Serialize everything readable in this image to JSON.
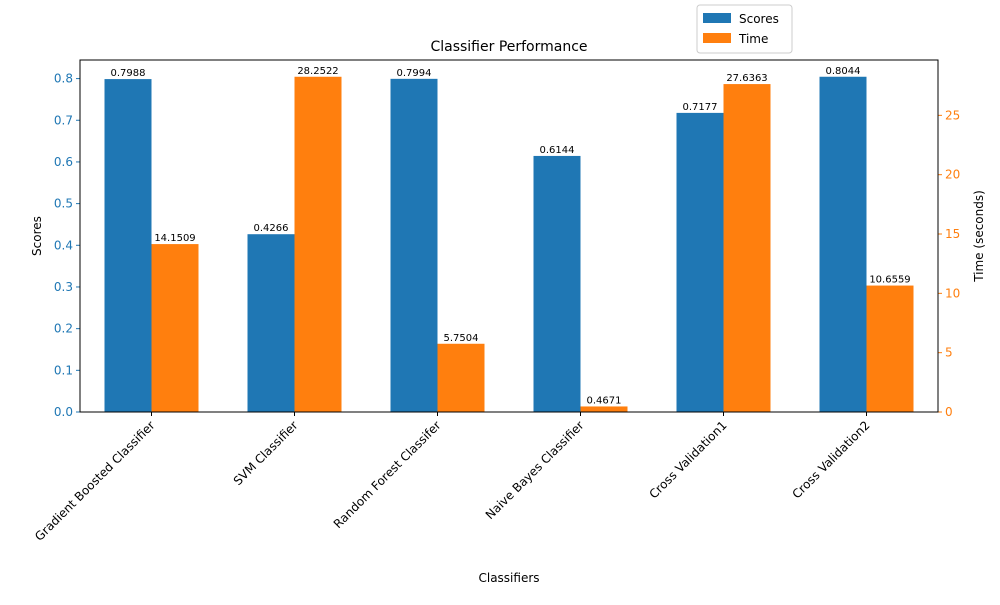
{
  "chart_data": {
    "type": "bar",
    "title": "Classifier Performance",
    "xlabel": "Classifiers",
    "ylabel_left": "Scores",
    "ylabel_right": "Time (seconds)",
    "categories": [
      "Gradient Boosted Classifier",
      "SVM Classifier",
      "Random Forest Classifer",
      "Naive Bayes Classifier",
      "Cross Validation1",
      "Cross Validation2"
    ],
    "series": [
      {
        "name": "Scores",
        "axis": "left",
        "color": "#1f77b4",
        "values": [
          0.7988,
          0.4266,
          0.7994,
          0.6144,
          0.7177,
          0.8044
        ],
        "labels": [
          "0.7988",
          "0.4266",
          "0.7994",
          "0.6144",
          "0.7177",
          "0.8044"
        ]
      },
      {
        "name": "Time",
        "axis": "right",
        "color": "#ff7f0e",
        "values": [
          14.1509,
          28.2522,
          5.7504,
          0.4671,
          27.6363,
          10.6559
        ],
        "labels": [
          "14.1509",
          "28.2522",
          "5.7504",
          "0.4671",
          "27.6363",
          "10.6559"
        ]
      }
    ],
    "ylim_left": [
      0,
      0.8446
    ],
    "ylim_right": [
      0,
      29.665
    ],
    "yticks_left": [
      "0.0",
      "0.1",
      "0.2",
      "0.3",
      "0.4",
      "0.5",
      "0.6",
      "0.7",
      "0.8"
    ],
    "yticks_right": [
      "0",
      "5",
      "10",
      "15",
      "20",
      "25"
    ],
    "left_tick_color": "#1f77b4",
    "right_tick_color": "#ff7f0e",
    "legend_position": "top-right, above plot"
  }
}
